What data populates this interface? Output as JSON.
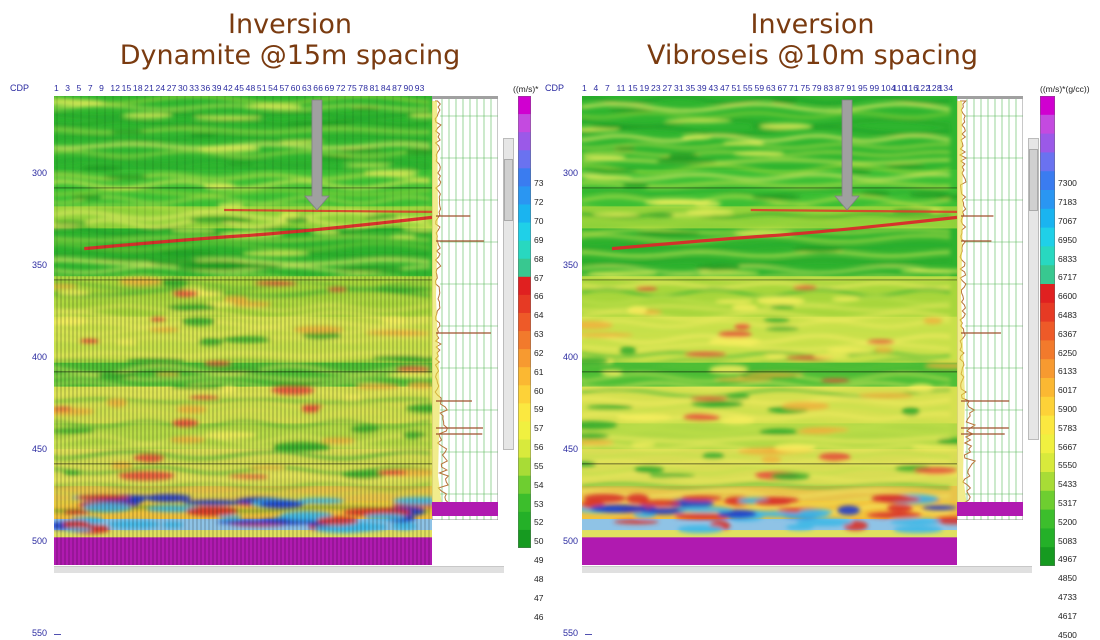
{
  "titles": {
    "left": [
      "Inversion",
      "Dynamite @15m spacing"
    ],
    "right": [
      "Inversion",
      "Vibroseis @10m spacing"
    ]
  },
  "axis": {
    "cdp_label": "CDP",
    "y_ticks": [
      "350",
      "400",
      "450",
      "500",
      "550"
    ],
    "y_top_partial": "300"
  },
  "colors": {
    "accent_title": "#7a3b10",
    "axis_text": "#2a2aa0",
    "arrow": "#a0a0a0",
    "basement": "#b01ab0"
  },
  "chart_data": [
    {
      "type": "heatmap",
      "title": "Inversion Dynamite @15m spacing",
      "x_label": "CDP",
      "x_ticks": [
        "1",
        "3",
        "5",
        "7",
        "9",
        "12",
        "15",
        "18",
        "21",
        "24",
        "27",
        "30",
        "33",
        "36",
        "39",
        "42",
        "45",
        "48",
        "51",
        "54",
        "57",
        "60",
        "63",
        "66",
        "69",
        "72",
        "75",
        "78",
        "81",
        "84",
        "87",
        "90",
        "93"
      ],
      "y_range": [
        300,
        555
      ],
      "y_ticks": [
        350,
        400,
        450,
        500,
        550
      ],
      "unit": "((m/s)*",
      "colorbar_labels": [
        "73",
        "72",
        "70",
        "69",
        "68",
        "67",
        "66",
        "64",
        "63",
        "62",
        "61",
        "60",
        "59",
        "57",
        "56",
        "55",
        "54",
        "53",
        "52",
        "50",
        "49",
        "48",
        "47",
        "46"
      ],
      "arrow_position_cdp": 65,
      "arrow_tip_depth": 362
    },
    {
      "type": "heatmap",
      "title": "Inversion Vibroseis @10m spacing",
      "x_label": "CDP",
      "x_ticks": [
        "1",
        "4",
        "7",
        "11",
        "15",
        "19",
        "23",
        "27",
        "31",
        "35",
        "39",
        "43",
        "47",
        "51",
        "55",
        "59",
        "63",
        "67",
        "71",
        "75",
        "79",
        "83",
        "87",
        "91",
        "95",
        "99",
        "104",
        "110",
        "116",
        "122",
        "128",
        "134"
      ],
      "y_range": [
        300,
        555
      ],
      "y_ticks": [
        350,
        400,
        450,
        500,
        550
      ],
      "unit": "((m/s)*(g/cc))",
      "colorbar_labels": [
        "7300",
        "7183",
        "7067",
        "6950",
        "6833",
        "6717",
        "6600",
        "6483",
        "6367",
        "6250",
        "6133",
        "6017",
        "5900",
        "5783",
        "5667",
        "5550",
        "5433",
        "5317",
        "5200",
        "5083",
        "4967",
        "4850",
        "4733",
        "4617",
        "4500"
      ],
      "color_scale_range": [
        4500,
        7300
      ],
      "arrow_position_cdp": 95,
      "arrow_tip_depth": 362
    }
  ]
}
